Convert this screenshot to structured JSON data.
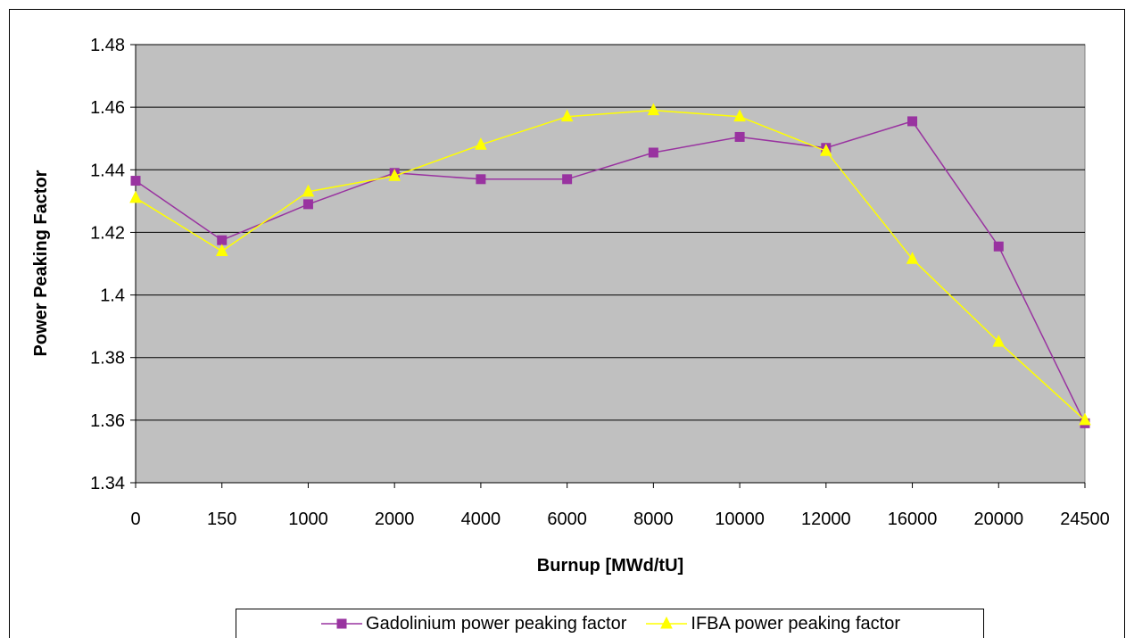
{
  "chart_data": {
    "type": "line",
    "title": "",
    "xlabel": "Burnup [MWd/tU]",
    "ylabel": "Power Peaking Factor",
    "categories": [
      "0",
      "150",
      "1000",
      "2000",
      "4000",
      "6000",
      "8000",
      "10000",
      "12000",
      "16000",
      "20000",
      "24500"
    ],
    "ylim": [
      1.34,
      1.48
    ],
    "yticks": [
      "1.34",
      "1.36",
      "1.38",
      "1.4",
      "1.42",
      "1.44",
      "1.46",
      "1.48"
    ],
    "grid": true,
    "legend_position": "bottom",
    "plot_background": "#c0c0c0",
    "series": [
      {
        "name": "Gadolinium power peaking factor",
        "color": "#9933a0",
        "marker": "square",
        "values": [
          1.4365,
          1.4175,
          1.429,
          1.439,
          1.437,
          1.437,
          1.4455,
          1.4505,
          1.447,
          1.4555,
          1.4155,
          1.359
        ]
      },
      {
        "name": "IFBA power peaking factor",
        "color": "#ffff00",
        "marker": "triangle",
        "values": [
          1.431,
          1.414,
          1.433,
          1.438,
          1.448,
          1.457,
          1.459,
          1.457,
          1.446,
          1.4115,
          1.385,
          1.36
        ]
      }
    ]
  }
}
